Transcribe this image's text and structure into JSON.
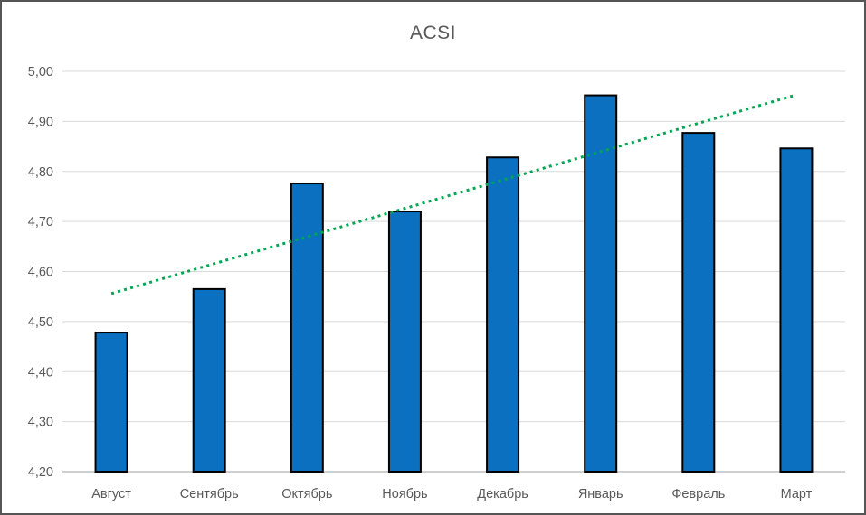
{
  "chart_data": {
    "type": "bar",
    "title": "ACSI",
    "categories": [
      "Август",
      "Сентябрь",
      "Октябрь",
      "Ноябрь",
      "Декабрь",
      "Январь",
      "Февраль",
      "Март"
    ],
    "values": [
      4.478,
      4.565,
      4.776,
      4.72,
      4.828,
      4.952,
      4.877,
      4.846
    ],
    "ylim": [
      4.2,
      5.0
    ],
    "ytick_values": [
      4.2,
      4.3,
      4.4,
      4.5,
      4.6,
      4.7,
      4.8,
      4.9,
      5.0
    ],
    "ytick_labels": [
      "4,20",
      "4,30",
      "4,40",
      "4,50",
      "4,60",
      "4,70",
      "4,80",
      "4,90",
      "5,00"
    ],
    "grid": true,
    "legend": "none",
    "bar_fill": "#0B70C0",
    "bar_border": "#000000",
    "gridline_color": "#D9D9D9",
    "axis_line_color": "#BFBFBF",
    "text_color": "#595959",
    "trendline": {
      "type": "linear",
      "style": "dotted",
      "color": "#00A651",
      "start_value": 4.556,
      "end_value": 4.953
    }
  }
}
